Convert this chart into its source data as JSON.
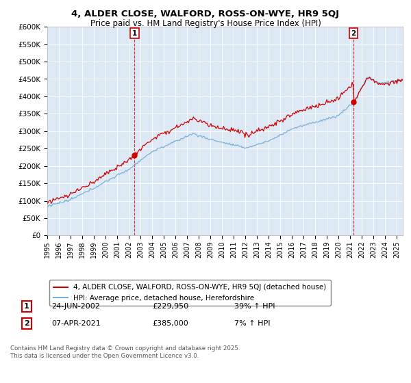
{
  "title": "4, ALDER CLOSE, WALFORD, ROSS-ON-WYE, HR9 5QJ",
  "subtitle": "Price paid vs. HM Land Registry's House Price Index (HPI)",
  "ylabel_ticks": [
    "£0",
    "£50K",
    "£100K",
    "£150K",
    "£200K",
    "£250K",
    "£300K",
    "£350K",
    "£400K",
    "£450K",
    "£500K",
    "£550K",
    "£600K"
  ],
  "ytick_vals": [
    0,
    50000,
    100000,
    150000,
    200000,
    250000,
    300000,
    350000,
    400000,
    450000,
    500000,
    550000,
    600000
  ],
  "ylim": [
    0,
    600000
  ],
  "xlim_start": 1995.0,
  "xlim_end": 2025.5,
  "marker1_x": 2002.48,
  "marker1_y": 229950,
  "marker2_x": 2021.27,
  "marker2_y": 385000,
  "legend_line1": "4, ALDER CLOSE, WALFORD, ROSS-ON-WYE, HR9 5QJ (detached house)",
  "legend_line2": "HPI: Average price, detached house, Herefordshire",
  "table_row1": [
    "1",
    "24-JUN-2002",
    "£229,950",
    "39% ↑ HPI"
  ],
  "table_row2": [
    "2",
    "07-APR-2021",
    "£385,000",
    "7% ↑ HPI"
  ],
  "footer": "Contains HM Land Registry data © Crown copyright and database right 2025.\nThis data is licensed under the Open Government Licence v3.0.",
  "line_color_red": "#cc0000",
  "line_color_blue": "#7ab0d4",
  "plot_bg_color": "#dce9f5",
  "background_color": "#ffffff",
  "grid_color": "#ffffff"
}
